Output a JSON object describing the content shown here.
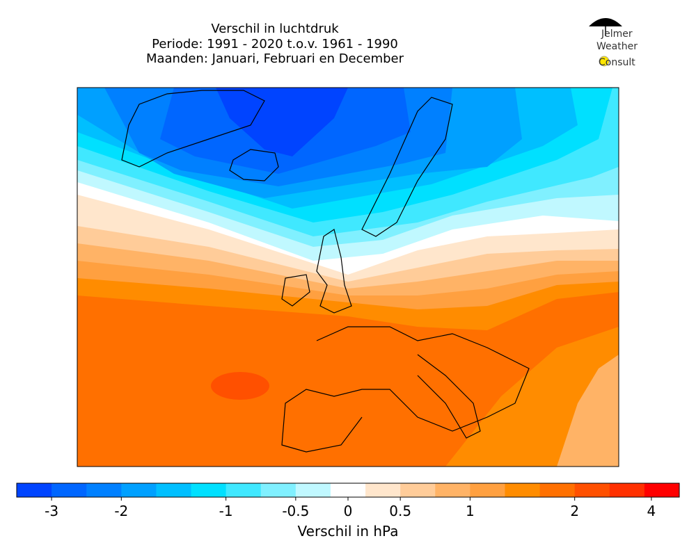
{
  "chart_data": {
    "type": "contour_map",
    "title": [
      "Verschil in luchtdruk",
      "Periode: 1991 - 2020 t.o.v. 1961 - 1990",
      "Maanden: Januari, Februari en December"
    ],
    "logo": [
      "Jelmer",
      "Weather",
      "Consult"
    ],
    "colorbar": {
      "label": "Verschil in hPa",
      "levels": [
        -3.5,
        -3,
        -2.5,
        -2,
        -1.6667,
        -1.3333,
        -1,
        -0.75,
        -0.5,
        -0.25,
        0.25,
        0.5,
        0.75,
        1,
        1.3333,
        1.6667,
        2,
        2.5,
        3.75,
        5
      ],
      "colors": [
        "#0044ff",
        "#0066ff",
        "#0080ff",
        "#00a0ff",
        "#00bfff",
        "#00e0ff",
        "#40e8ff",
        "#80f0ff",
        "#c0f8ff",
        "#ffffff",
        "#ffe6cc",
        "#ffcc99",
        "#ffb366",
        "#ffa040",
        "#ff8c00",
        "#ff7000",
        "#ff5000",
        "#ff3000",
        "#ff0000"
      ],
      "ticks": [
        -3,
        -2,
        -1,
        -0.5,
        0,
        0.5,
        1,
        2,
        4
      ]
    }
  }
}
